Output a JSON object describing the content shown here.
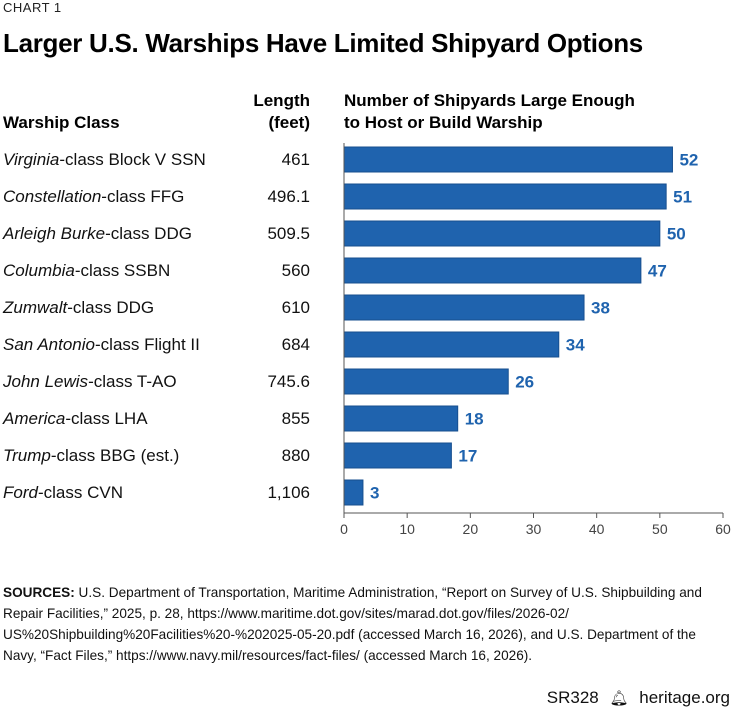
{
  "kicker": "CHART 1",
  "title": "Larger U.S. Warships Have Limited Shipyard Options",
  "headers": {
    "class": "Warship Class",
    "length_line1": "Length",
    "length_line2": "(feet)",
    "ships_line1": "Number of Shipyards Large Enough",
    "ships_line2": "to Host or Build Warship"
  },
  "colors": {
    "bar": "#1f63ae",
    "label": "#1f63ae",
    "axis": "#555555"
  },
  "chart_data": {
    "type": "bar",
    "orientation": "horizontal",
    "categories": [
      "Virginia-class Block V SSN",
      "Constellation-class FFG",
      "Arleigh Burke-class DDG",
      "Columbia-class SSBN",
      "Zumwalt-class DDG",
      "San Antonio-class Flight II",
      "John Lewis-class T-AO",
      "America-class LHA",
      "Trump-class BBG (est.)",
      "Ford-class CVN"
    ],
    "rows": [
      {
        "name_italic": "Virginia",
        "name_rest": "-class Block V SSN",
        "length": "461"
      },
      {
        "name_italic": "Constellation",
        "name_rest": "-class FFG",
        "length": "496.1"
      },
      {
        "name_italic": "Arleigh Burke",
        "name_rest": "-class DDG",
        "length": "509.5"
      },
      {
        "name_italic": "Columbia",
        "name_rest": "-class SSBN",
        "length": "560"
      },
      {
        "name_italic": "Zumwalt",
        "name_rest": "-class DDG",
        "length": "610"
      },
      {
        "name_italic": "San Antonio",
        "name_rest": "-class Flight II",
        "length": "684"
      },
      {
        "name_italic": "John Lewis",
        "name_rest": "-class T-AO",
        "length": "745.6"
      },
      {
        "name_italic": "America",
        "name_rest": "-class LHA",
        "length": "855"
      },
      {
        "name_italic": "Trump",
        "name_rest": "-class BBG (est.)",
        "length": "880"
      },
      {
        "name_italic": "Ford",
        "name_rest": "-class CVN",
        "length": "1,106"
      }
    ],
    "values": [
      52,
      51,
      50,
      47,
      38,
      34,
      26,
      18,
      17,
      3
    ],
    "xlim": [
      0,
      60
    ],
    "xticks": [
      0,
      10,
      20,
      30,
      40,
      50,
      60
    ],
    "grid": false
  },
  "sources": {
    "label": "SOURCES:",
    "lines": [
      "U.S. Department of Transportation, Maritime Administration, “Report on Survey of U.S. Shipbuilding and",
      "Repair Facilities,” 2025, p. 28, https://www.maritime.dot.gov/sites/marad.dot.gov/files/2026-02/",
      "US%20Shipbuilding%20Facilities%20-%202025-05-20.pdf (accessed March 16, 2026), and U.S. Department of the",
      "Navy, “Fact Files,” https://www.navy.mil/resources/fact-files/ (accessed March 16, 2026)."
    ]
  },
  "footer": {
    "report": "SR328",
    "site": "heritage.org",
    "logo_icon": "liberty-bell-icon"
  }
}
